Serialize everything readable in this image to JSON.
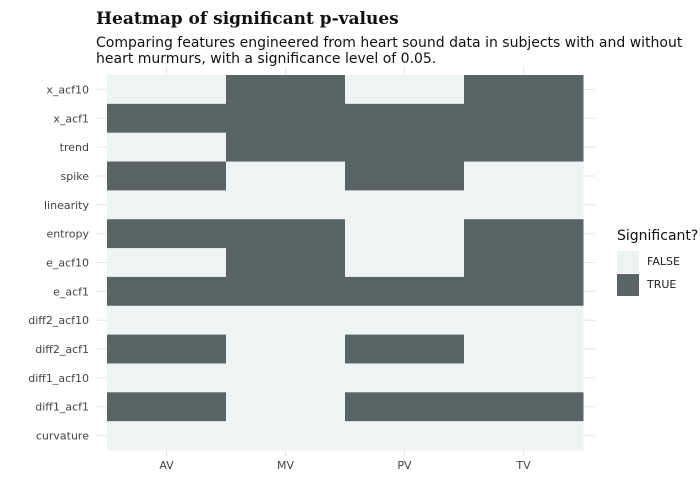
{
  "chart_data": {
    "type": "heatmap",
    "title": "Heatmap of significant p-values",
    "subtitle": "Comparing features engineered from heart sound data in subjects with and without heart murmurs, with a significance level of 0.05.",
    "x_categories": [
      "AV",
      "MV",
      "PV",
      "TV"
    ],
    "y_categories": [
      "x_acf10",
      "x_acf1",
      "trend",
      "spike",
      "linearity",
      "entropy",
      "e_acf10",
      "e_acf1",
      "diff2_acf10",
      "diff2_acf1",
      "diff1_acf10",
      "diff1_acf1",
      "curvature"
    ],
    "values": [
      [
        "FALSE",
        "TRUE",
        "FALSE",
        "TRUE"
      ],
      [
        "TRUE",
        "TRUE",
        "TRUE",
        "TRUE"
      ],
      [
        "FALSE",
        "TRUE",
        "TRUE",
        "TRUE"
      ],
      [
        "TRUE",
        "FALSE",
        "TRUE",
        "FALSE"
      ],
      [
        "FALSE",
        "FALSE",
        "FALSE",
        "FALSE"
      ],
      [
        "TRUE",
        "TRUE",
        "FALSE",
        "TRUE"
      ],
      [
        "FALSE",
        "TRUE",
        "FALSE",
        "TRUE"
      ],
      [
        "TRUE",
        "TRUE",
        "TRUE",
        "TRUE"
      ],
      [
        "FALSE",
        "FALSE",
        "FALSE",
        "FALSE"
      ],
      [
        "TRUE",
        "FALSE",
        "TRUE",
        "FALSE"
      ],
      [
        "FALSE",
        "FALSE",
        "FALSE",
        "FALSE"
      ],
      [
        "TRUE",
        "FALSE",
        "TRUE",
        "TRUE"
      ],
      [
        "FALSE",
        "FALSE",
        "FALSE",
        "FALSE"
      ]
    ],
    "legend": {
      "title": "Significant?",
      "placement": "right",
      "items": [
        {
          "label": "FALSE",
          "color": "#eef3f3"
        },
        {
          "label": "TRUE",
          "color": "#586564"
        }
      ]
    },
    "grid": true
  }
}
